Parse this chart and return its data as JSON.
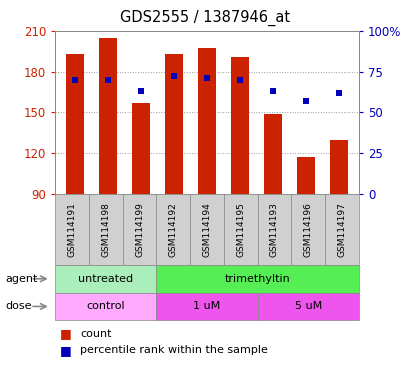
{
  "title": "GDS2555 / 1387946_at",
  "samples": [
    "GSM114191",
    "GSM114198",
    "GSM114199",
    "GSM114192",
    "GSM114194",
    "GSM114195",
    "GSM114193",
    "GSM114196",
    "GSM114197"
  ],
  "bar_values": [
    193,
    205,
    157,
    193,
    197,
    191,
    149,
    117,
    130
  ],
  "percentile_values": [
    70,
    70,
    63,
    72,
    71,
    70,
    63,
    57,
    62
  ],
  "ymin": 90,
  "ymax": 210,
  "yticks_left": [
    90,
    120,
    150,
    180,
    210
  ],
  "yticks_right_pct": [
    0,
    25,
    50,
    75,
    100
  ],
  "bar_color": "#cc2200",
  "percentile_color": "#0000bb",
  "grid_color": "#999999",
  "left_tick_color": "#cc2200",
  "right_tick_color": "#0000bb",
  "agent_groups": [
    {
      "label": "untreated",
      "start": 0,
      "end": 3,
      "color": "#aaeebb"
    },
    {
      "label": "trimethyltin",
      "start": 3,
      "end": 9,
      "color": "#55ee55"
    }
  ],
  "dose_groups": [
    {
      "label": "control",
      "start": 0,
      "end": 3,
      "color": "#ffaaff"
    },
    {
      "label": "1 uM",
      "start": 3,
      "end": 6,
      "color": "#ee55ee"
    },
    {
      "label": "5 uM",
      "start": 6,
      "end": 9,
      "color": "#ee55ee"
    }
  ],
  "sample_bg_color": "#d0d0d0",
  "legend_count_color": "#cc2200",
  "legend_pct_color": "#0000bb",
  "plot_bg_color": "#ffffff",
  "fig_bg_color": "#ffffff"
}
